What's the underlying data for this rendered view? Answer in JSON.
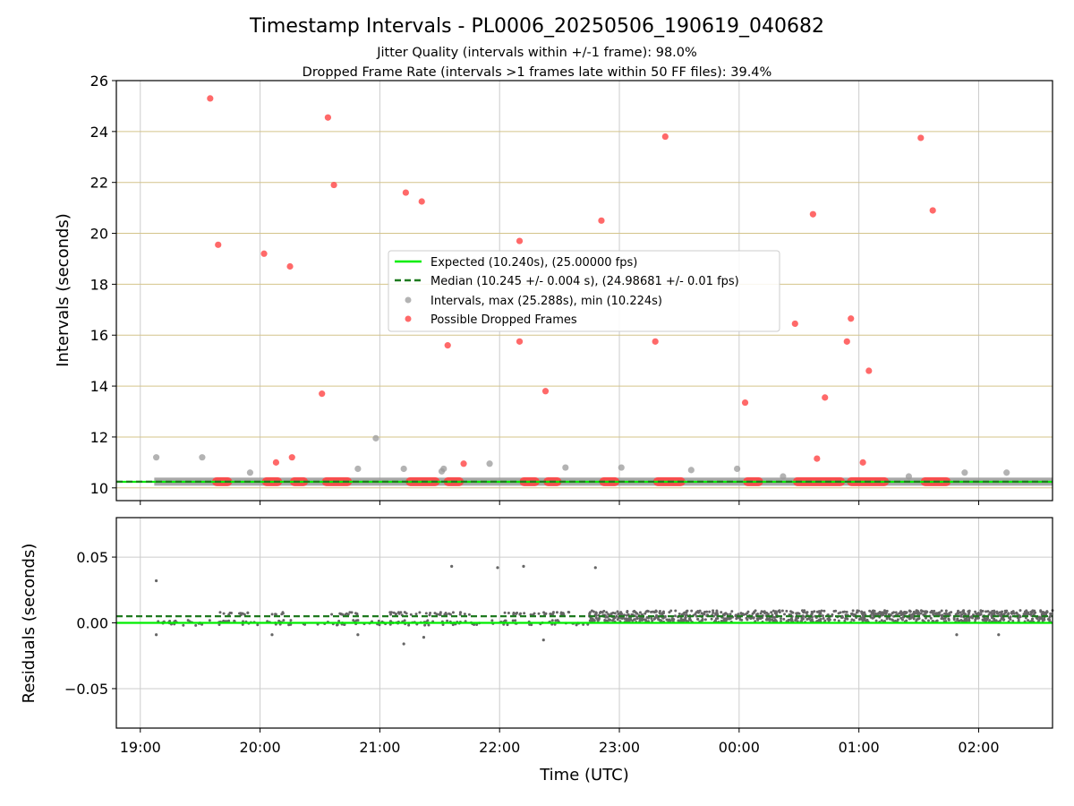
{
  "title": "Timestamp Intervals - PL0006_20250506_190619_040682",
  "subtitle_1": "Jitter Quality (intervals within +/-1 frame): 98.0%",
  "subtitle_2": "Dropped Frame Rate (intervals >1 frames late within 50 FF files): 39.4%",
  "colors": {
    "expected": "#00ee00",
    "median": "#1e7a1e",
    "intervals": "#999999",
    "dropped": "#ff4444",
    "residuals": "#666666",
    "hgrid_top": "#d4c48a",
    "grid": "#cccccc"
  },
  "chart_data": [
    {
      "type": "scatter",
      "name": "intervals",
      "ylabel": "Intervals (seconds)",
      "xlabel": "",
      "xlim": [
        "18:48",
        "02:37"
      ],
      "ylim": [
        9.5,
        26
      ],
      "yticks": [
        "10",
        "12",
        "14",
        "16",
        "18",
        "20",
        "22",
        "24",
        "26"
      ],
      "ytick_values": [
        10,
        12,
        14,
        16,
        18,
        20,
        22,
        24,
        26
      ],
      "expected": 10.24,
      "median": 10.245,
      "legend": {
        "placement": "center",
        "entries": [
          "Expected (10.240s), (25.00000 fps)",
          "Median (10.245 +/- 0.004 s), (24.98681 +/- 0.01 fps)",
          "Intervals, max (25.288s), min (10.224s)",
          "Possible Dropped Frames"
        ]
      },
      "dropped_points": [
        {
          "t": "19:35",
          "y": 25.3
        },
        {
          "t": "19:39",
          "y": 19.55
        },
        {
          "t": "20:02",
          "y": 19.2
        },
        {
          "t": "20:08",
          "y": 11.0
        },
        {
          "t": "20:15",
          "y": 18.7
        },
        {
          "t": "20:16",
          "y": 11.2
        },
        {
          "t": "20:31",
          "y": 13.7
        },
        {
          "t": "20:34",
          "y": 24.55
        },
        {
          "t": "20:37",
          "y": 21.9
        },
        {
          "t": "21:13",
          "y": 21.6
        },
        {
          "t": "21:21",
          "y": 21.25
        },
        {
          "t": "21:34",
          "y": 15.6
        },
        {
          "t": "21:42",
          "y": 10.95
        },
        {
          "t": "22:10",
          "y": 19.7
        },
        {
          "t": "22:10",
          "y": 15.75
        },
        {
          "t": "22:23",
          "y": 13.8
        },
        {
          "t": "22:51",
          "y": 20.5
        },
        {
          "t": "23:18",
          "y": 15.75
        },
        {
          "t": "23:23",
          "y": 23.8
        },
        {
          "t": "00:03",
          "y": 13.35
        },
        {
          "t": "00:28",
          "y": 16.45
        },
        {
          "t": "00:37",
          "y": 20.75
        },
        {
          "t": "00:39",
          "y": 11.15
        },
        {
          "t": "00:43",
          "y": 13.55
        },
        {
          "t": "00:54",
          "y": 15.75
        },
        {
          "t": "00:56",
          "y": 16.65
        },
        {
          "t": "01:02",
          "y": 11.0
        },
        {
          "t": "01:05",
          "y": 14.6
        },
        {
          "t": "01:31",
          "y": 23.75
        },
        {
          "t": "01:37",
          "y": 20.9
        }
      ],
      "interval_outliers": [
        {
          "t": "19:08",
          "y": 11.2
        },
        {
          "t": "19:31",
          "y": 11.2
        },
        {
          "t": "19:55",
          "y": 10.6
        },
        {
          "t": "20:49",
          "y": 10.75
        },
        {
          "t": "20:58",
          "y": 11.95
        },
        {
          "t": "21:12",
          "y": 10.75
        },
        {
          "t": "21:31",
          "y": 10.65
        },
        {
          "t": "21:32",
          "y": 10.75
        },
        {
          "t": "21:55",
          "y": 10.95
        },
        {
          "t": "22:33",
          "y": 10.8
        },
        {
          "t": "23:01",
          "y": 10.8
        },
        {
          "t": "23:36",
          "y": 10.7
        },
        {
          "t": "23:59",
          "y": 10.75
        },
        {
          "t": "00:22",
          "y": 10.45
        },
        {
          "t": "01:25",
          "y": 10.45
        },
        {
          "t": "01:53",
          "y": 10.6
        },
        {
          "t": "02:14",
          "y": 10.6
        }
      ],
      "dropped_clusters": [
        [
          "19:36",
          "19:46"
        ],
        [
          "20:01",
          "20:11"
        ],
        [
          "20:15",
          "20:24"
        ],
        [
          "20:31",
          "20:46"
        ],
        [
          "21:13",
          "21:30"
        ],
        [
          "21:32",
          "21:42"
        ],
        [
          "22:10",
          "22:20"
        ],
        [
          "22:22",
          "22:31"
        ],
        [
          "22:50",
          "23:00"
        ],
        [
          "23:17",
          "23:33"
        ],
        [
          "00:02",
          "00:12"
        ],
        [
          "00:27",
          "00:53"
        ],
        [
          "00:54",
          "01:15"
        ],
        [
          "01:31",
          "01:46"
        ]
      ]
    },
    {
      "type": "scatter",
      "name": "residuals",
      "ylabel": "Residuals (seconds)",
      "xlabel": "Time (UTC)",
      "xlim": [
        "18:48",
        "02:37"
      ],
      "ylim": [
        -0.08,
        0.08
      ],
      "yticks": [
        "0.05",
        "0.00",
        "−0.05"
      ],
      "ytick_values": [
        0.05,
        0.0,
        -0.05
      ],
      "xticks": [
        "19:00",
        "20:00",
        "21:00",
        "22:00",
        "23:00",
        "00:00",
        "01:00",
        "02:00"
      ],
      "expected": 0.0,
      "median": 0.005,
      "outliers": [
        {
          "t": "19:08",
          "y": 0.032
        },
        {
          "t": "19:08",
          "y": -0.009
        },
        {
          "t": "21:12",
          "y": -0.016
        },
        {
          "t": "21:22",
          "y": -0.011
        },
        {
          "t": "21:36",
          "y": 0.043
        },
        {
          "t": "21:59",
          "y": 0.042
        },
        {
          "t": "22:12",
          "y": 0.043
        },
        {
          "t": "22:22",
          "y": -0.013
        },
        {
          "t": "22:48",
          "y": 0.042
        },
        {
          "t": "20:49",
          "y": -0.009
        },
        {
          "t": "20:06",
          "y": -0.009
        },
        {
          "t": "01:49",
          "y": -0.009
        },
        {
          "t": "02:10",
          "y": -0.009
        }
      ]
    }
  ]
}
